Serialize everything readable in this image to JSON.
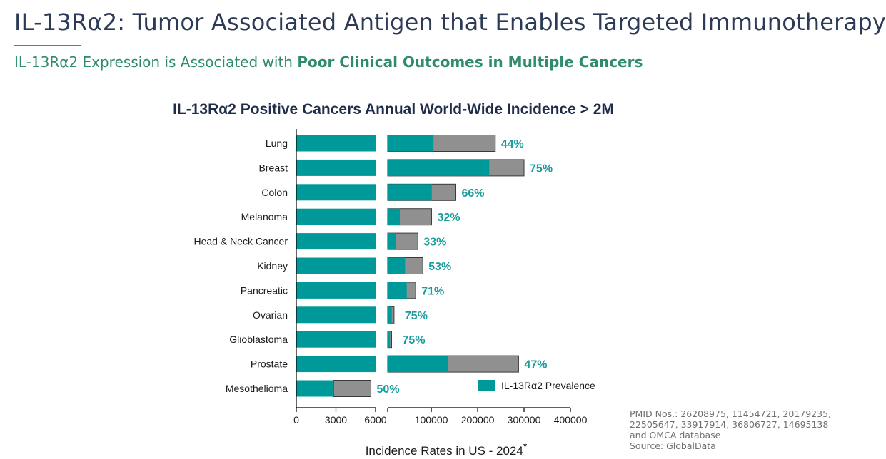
{
  "header": {
    "title": "IL-13Rα2: Tumor Associated Antigen that Enables Targeted Immunotherapy",
    "subtitle_prefix": "IL-13Rα2 Expression is Associated with ",
    "subtitle_bold": "Poor Clinical Outcomes in Multiple Cancers"
  },
  "source": {
    "line1": "PMID Nos.: 26208975, 11454721, 20179235,",
    "line2": "22505647, 33917914, 36806727, 14695138",
    "line3": "and OMCA database",
    "line4": "Source: GlobalData"
  },
  "colors": {
    "prevalence": "#009999",
    "remainder": "#909090",
    "label": "#1a9c9c",
    "title": "#1f2d4a"
  },
  "chart_data": {
    "type": "bar",
    "orientation": "horizontal",
    "stacked": true,
    "broken_axis": true,
    "title": "IL-13Rα2 Positive Cancers Annual World-Wide Incidence > 2M",
    "xlabel": "Incidence Rates in US - 2024",
    "xlabel_marker": "*",
    "ylabel": "",
    "axis_segments": [
      {
        "range": [
          0,
          6000
        ],
        "ticks": [
          0,
          3000,
          6000
        ],
        "tick_labels": [
          "0",
          "3000",
          "6000"
        ]
      },
      {
        "range": [
          6000,
          400000
        ],
        "ticks": [
          100000,
          200000,
          300000,
          400000
        ],
        "tick_labels": [
          "100000",
          "200000",
          "300000",
          "400000"
        ]
      }
    ],
    "legend": {
      "label": "IL-13Rα2 Prevalence",
      "position": "bottom-right"
    },
    "categories": [
      "Lung",
      "Breast",
      "Colon",
      "Melanoma",
      "Head & Neck Cancer",
      "Kidney",
      "Pancreatic",
      "Ovarian",
      "Glioblastoma",
      "Prostate",
      "Mesothelioma"
    ],
    "totals": [
      238000,
      300000,
      153000,
      100600,
      71100,
      81800,
      66400,
      19700,
      14500,
      288300,
      5650
    ],
    "prevalence": [
      104720,
      225000,
      100980,
      32190,
      23460,
      43350,
      47140,
      14775,
      10875,
      135500,
      2825
    ],
    "percent_labels": [
      "44%",
      "75%",
      "66%",
      "32%",
      "33%",
      "53%",
      "71%",
      "75%",
      "75%",
      "47%",
      "50%"
    ]
  }
}
